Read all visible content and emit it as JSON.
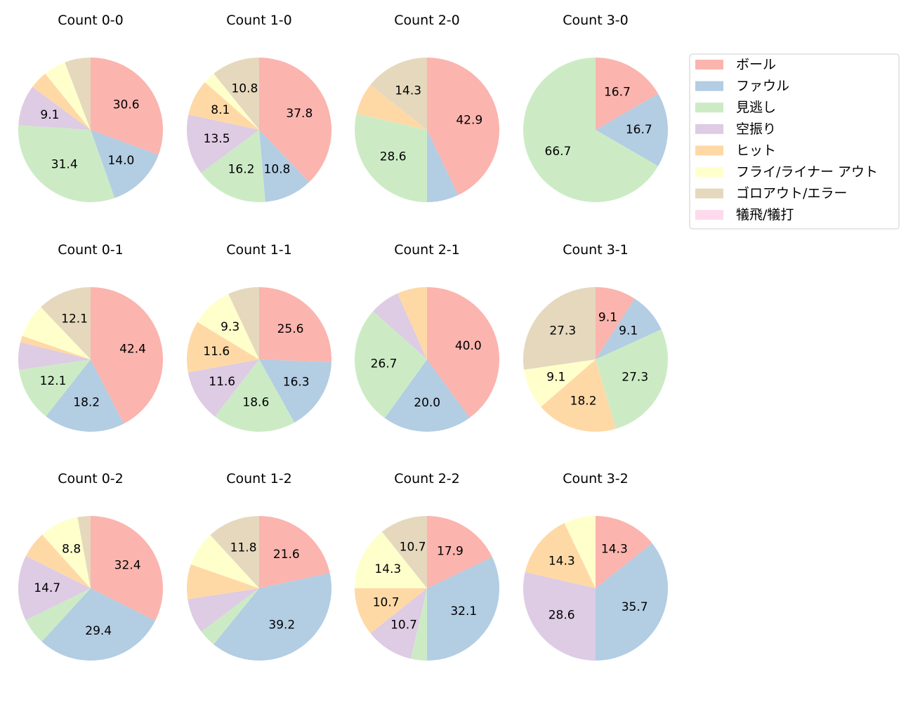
{
  "chart_data": [
    {
      "type": "pie",
      "title": "Count 0-0",
      "values": [
        30.6,
        14.0,
        31.4,
        9.1,
        4.1,
        5.0,
        5.8,
        0
      ]
    },
    {
      "type": "pie",
      "title": "Count 1-0",
      "values": [
        37.8,
        10.8,
        16.2,
        13.5,
        8.1,
        2.7,
        10.8,
        0
      ]
    },
    {
      "type": "pie",
      "title": "Count 2-0",
      "values": [
        42.9,
        7.1,
        28.6,
        0,
        7.1,
        0,
        14.3,
        0
      ]
    },
    {
      "type": "pie",
      "title": "Count 3-0",
      "values": [
        16.7,
        16.7,
        66.7,
        0,
        0,
        0,
        0,
        0
      ]
    },
    {
      "type": "pie",
      "title": "Count 0-1",
      "values": [
        42.4,
        18.2,
        12.1,
        6.1,
        1.5,
        7.6,
        12.1,
        0
      ]
    },
    {
      "type": "pie",
      "title": "Count 1-1",
      "values": [
        25.6,
        16.3,
        18.6,
        11.6,
        11.6,
        9.3,
        7.0,
        0
      ]
    },
    {
      "type": "pie",
      "title": "Count 2-1",
      "values": [
        40.0,
        20.0,
        26.7,
        6.7,
        6.7,
        0,
        0,
        0
      ]
    },
    {
      "type": "pie",
      "title": "Count 3-1",
      "values": [
        9.1,
        9.1,
        27.3,
        0,
        18.2,
        9.1,
        27.3,
        0
      ]
    },
    {
      "type": "pie",
      "title": "Count 0-2",
      "values": [
        32.4,
        29.4,
        5.9,
        14.7,
        5.9,
        8.8,
        2.9,
        0
      ]
    },
    {
      "type": "pie",
      "title": "Count 1-2",
      "values": [
        21.6,
        39.2,
        3.9,
        7.8,
        7.8,
        7.8,
        11.8,
        0
      ]
    },
    {
      "type": "pie",
      "title": "Count 2-2",
      "values": [
        17.9,
        32.1,
        3.6,
        10.7,
        10.7,
        14.3,
        10.7,
        0
      ]
    },
    {
      "type": "pie",
      "title": "Count 3-2",
      "values": [
        14.3,
        35.7,
        0,
        28.6,
        14.3,
        7.1,
        0,
        0
      ]
    }
  ],
  "legend": {
    "placement": "right",
    "labels": [
      "ボール",
      "ファウル",
      "見逃し",
      "空振り",
      "ヒット",
      "フライ/ライナー アウト",
      "ゴロアウト/エラー",
      "犠飛/犠打"
    ],
    "colors": [
      "#fbb4ae",
      "#b3cde3",
      "#ccebc5",
      "#decbe4",
      "#fed9a6",
      "#ffffcc",
      "#e5d8bd",
      "#fddaec"
    ]
  }
}
